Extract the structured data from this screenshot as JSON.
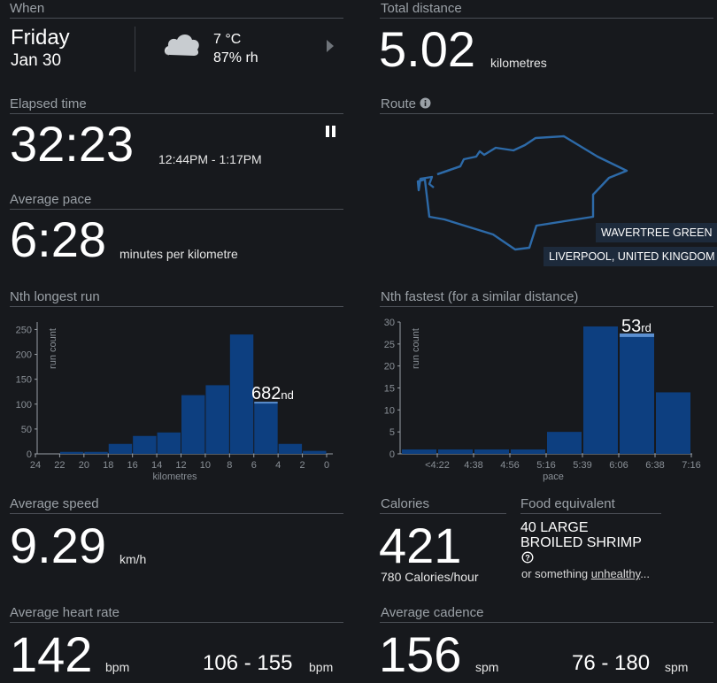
{
  "when": {
    "label": "When",
    "day": "Friday",
    "date": "Jan 30",
    "temp": "7 °C",
    "humidity": "87% rh",
    "weather_icon": "cloud-icon",
    "next_icon": "chevron-right-icon"
  },
  "distance": {
    "label": "Total distance",
    "value": "5.02",
    "unit": "kilometres"
  },
  "elapsed": {
    "label": "Elapsed time",
    "value": "32:23",
    "range": "12:44PM - 1:17PM",
    "pause_icon": "pause-icon"
  },
  "route": {
    "label": "Route",
    "info_icon": "info-icon",
    "place1": "WAVERTREE GREEN",
    "place2": "LIVERPOOL, UNITED KINGDOM"
  },
  "pace": {
    "label": "Average pace",
    "value": "6:28",
    "unit": "minutes per kilometre"
  },
  "longest": {
    "label": "Nth longest run",
    "rank": "682",
    "suffix": "nd"
  },
  "fastest": {
    "label": "Nth fastest (for a similar distance)",
    "rank": "53",
    "suffix": "rd"
  },
  "speed": {
    "label": "Average speed",
    "value": "9.29",
    "unit": "km/h"
  },
  "calories": {
    "label": "Calories",
    "value": "421",
    "per_hour": "780  Calories/hour"
  },
  "food": {
    "label": "Food equivalent",
    "line1": "40 LARGE",
    "line2": "BROILED SHRIMP",
    "help_icon": "question-circle-icon",
    "alt_prefix": "or something ",
    "alt_link": "unhealthy",
    "alt_suffix": "..."
  },
  "heart": {
    "label": "Average heart rate",
    "value": "142",
    "unit": "bpm",
    "range": "106 - 155",
    "range_unit": "bpm"
  },
  "cadence": {
    "label": "Average cadence",
    "value": "156",
    "unit": "spm",
    "range": "76 - 180",
    "range_unit": "spm"
  },
  "chart_data": [
    {
      "type": "bar",
      "xlabel": "kilometres",
      "ylabel": "run count",
      "x_ticks": [
        "24",
        "22",
        "20",
        "18",
        "16",
        "14",
        "12",
        "10",
        "8",
        "6",
        "4",
        "2",
        "0"
      ],
      "y_ticks": [
        "0",
        "50",
        "100",
        "150",
        "200",
        "250"
      ],
      "ylim": [
        0,
        265
      ],
      "bins": [
        [
          22,
          20
        ],
        [
          20,
          18
        ],
        [
          18,
          16
        ],
        [
          16,
          14
        ],
        [
          14,
          12
        ],
        [
          12,
          10
        ],
        [
          10,
          8
        ],
        [
          8,
          6
        ],
        [
          6,
          4
        ],
        [
          4,
          2
        ],
        [
          2,
          0
        ]
      ],
      "values": [
        4,
        4,
        20,
        36,
        43,
        118,
        138,
        240,
        103,
        20,
        6
      ],
      "highlight_index": 8,
      "annotation": "682nd"
    },
    {
      "type": "bar",
      "xlabel": "pace",
      "ylabel": "run count",
      "x_ticks": [
        "<4:22",
        "4:38",
        "4:56",
        "5:16",
        "5:39",
        "6:06",
        "6:38",
        "7:16"
      ],
      "y_ticks": [
        "0",
        "5",
        "10",
        "15",
        "20",
        "25",
        "30"
      ],
      "ylim": [
        0,
        30
      ],
      "values": [
        1,
        1,
        1,
        1,
        5,
        29,
        27,
        14
      ],
      "highlight_index": 6,
      "annotation": "53rd"
    }
  ]
}
